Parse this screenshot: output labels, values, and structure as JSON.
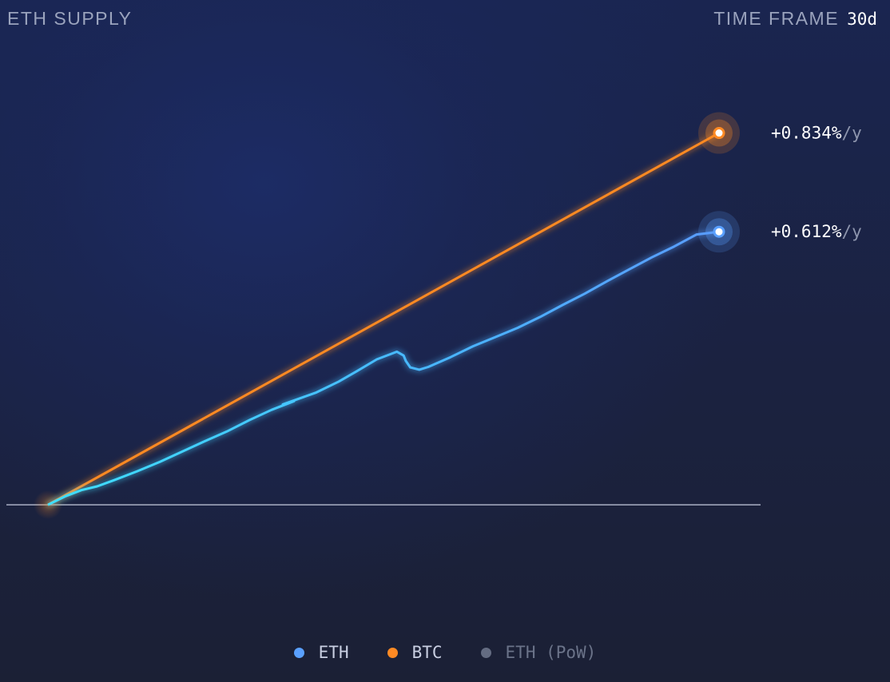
{
  "header": {
    "title": "ETH SUPPLY",
    "timeframe_label": "TIME FRAME",
    "timeframe_value": "30d"
  },
  "colors": {
    "eth": "#5aa0ff",
    "eth_glow": "#3fdcff",
    "btc": "#ff8a24",
    "eth_pow": "#646c82",
    "baseline": "#aab0c4"
  },
  "chart_data": {
    "type": "line",
    "title": "ETH SUPPLY",
    "xlabel": "",
    "ylabel": "",
    "x_unit": "days",
    "xlim": [
      0,
      30
    ],
    "ylim": [
      -0.025,
      0.083
    ],
    "baseline": 0,
    "series": [
      {
        "name": "BTC",
        "color": "#ff8a24",
        "end_label": "+0.834%",
        "x": [
          0,
          30
        ],
        "y": [
          0,
          0.0685
        ]
      },
      {
        "name": "ETH",
        "color": "#5aa0ff",
        "end_label": "+0.612%",
        "x": [
          0,
          0.8,
          1.5,
          2.2,
          3,
          4,
          5,
          6,
          7,
          8,
          9,
          10,
          11,
          10.5,
          12,
          13,
          13.8,
          14.7,
          15.6,
          15.9,
          16,
          16.2,
          16.6,
          17,
          18,
          19,
          20,
          21,
          22,
          23,
          24,
          25,
          26,
          27,
          28,
          29,
          30
        ],
        "y": [
          0,
          0.0016,
          0.0027,
          0.0034,
          0.0046,
          0.0062,
          0.0079,
          0.0098,
          0.0117,
          0.0135,
          0.0156,
          0.0175,
          0.0191,
          0.0185,
          0.0207,
          0.0227,
          0.0246,
          0.0268,
          0.0282,
          0.0275,
          0.0265,
          0.0253,
          0.0249,
          0.0254,
          0.0272,
          0.0292,
          0.0309,
          0.0326,
          0.0346,
          0.0368,
          0.0389,
          0.0412,
          0.0434,
          0.0456,
          0.0476,
          0.0498,
          0.0503
        ]
      }
    ],
    "legend": {
      "placement": "bottom-center",
      "entries": [
        {
          "label": "ETH",
          "color": "#5aa0ff",
          "active": true
        },
        {
          "label": "BTC",
          "color": "#ff8a24",
          "active": true
        },
        {
          "label": "ETH (PoW)",
          "color": "#646c82",
          "active": false
        }
      ]
    },
    "grid": false,
    "end_label_unit": "/y"
  }
}
